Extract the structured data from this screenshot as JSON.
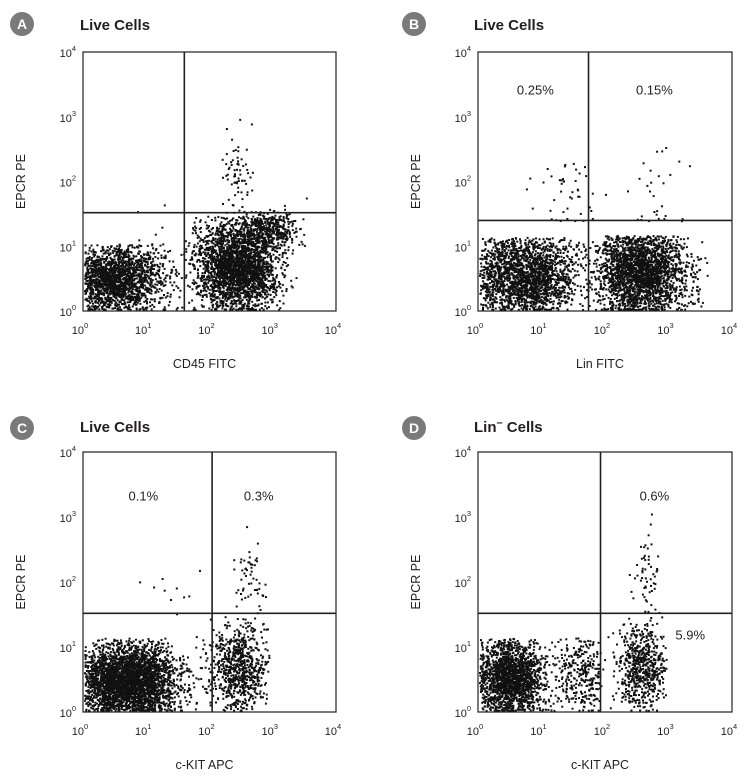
{
  "chart_data": [
    {
      "type": "scatter",
      "panel": "A",
      "title": "Live Cells",
      "title_sup": "",
      "xlabel": "CD45 FITC",
      "ylabel": "EPCR PE",
      "xscale": "log",
      "yscale": "log",
      "xlim": [
        1,
        10000
      ],
      "ylim": [
        1,
        10000
      ],
      "xticks": [
        "10",
        "10",
        "10",
        "10",
        "10"
      ],
      "xtick_exponents": [
        "0",
        "1",
        "2",
        "3",
        "4"
      ],
      "yticks": [
        "10",
        "10",
        "10",
        "10",
        "10"
      ],
      "ytick_exponents": [
        "0",
        "1",
        "2",
        "3",
        "4"
      ],
      "gate": {
        "x": 40,
        "y": 33
      },
      "quadrant_labels": [],
      "populations": [
        {
          "cx": 3,
          "cy": 3.2,
          "sx": 0.38,
          "sy": 0.28,
          "n": 1700,
          "xmin": 1,
          "xmax": 40,
          "ymax": 11
        },
        {
          "cx": 260,
          "cy": 5,
          "sx": 0.32,
          "sy": 0.38,
          "n": 2600,
          "xmin": 40,
          "xmax": 2500,
          "ymax": 30
        },
        {
          "cx": 900,
          "cy": 18,
          "sx": 0.22,
          "sy": 0.15,
          "n": 380,
          "xmin": 300,
          "xmax": 3500
        },
        {
          "cx": 270,
          "cy": 140,
          "sx": 0.12,
          "sy": 0.35,
          "n": 70,
          "xmin": 100,
          "xmax": 800,
          "ymin": 33
        },
        {
          "cx": 15,
          "cy": 4,
          "sx": 0.3,
          "sy": 0.4,
          "n": 60,
          "xmin": 5,
          "xmax": 40
        }
      ]
    },
    {
      "type": "scatter",
      "panel": "B",
      "title": "Live Cells",
      "title_sup": "",
      "xlabel": "Lin FITC",
      "ylabel": "EPCR PE",
      "xscale": "log",
      "yscale": "log",
      "xlim": [
        1,
        10000
      ],
      "ylim": [
        1,
        10000
      ],
      "xticks": [
        "10",
        "10",
        "10",
        "10",
        "10"
      ],
      "xtick_exponents": [
        "0",
        "1",
        "2",
        "3",
        "4"
      ],
      "yticks": [
        "10",
        "10",
        "10",
        "10",
        "10"
      ],
      "ytick_exponents": [
        "0",
        "1",
        "2",
        "3",
        "4"
      ],
      "gate": {
        "x": 55,
        "y": 25
      },
      "quadrant_labels": [
        {
          "text": "0.25%",
          "x": 8,
          "y": 2200
        },
        {
          "text": "0.15%",
          "x": 600,
          "y": 2200
        }
      ],
      "populations": [
        {
          "cx": 5,
          "cy": 3.5,
          "sx": 0.45,
          "sy": 0.35,
          "n": 2000,
          "xmin": 1,
          "xmax": 55,
          "ymax": 14
        },
        {
          "cx": 350,
          "cy": 4,
          "sx": 0.35,
          "sy": 0.38,
          "n": 2200,
          "xmin": 55,
          "xmax": 2000,
          "ymax": 15
        },
        {
          "cx": 25,
          "cy": 70,
          "sx": 0.22,
          "sy": 0.32,
          "n": 45,
          "xmin": 3,
          "xmax": 80,
          "ymin": 25
        },
        {
          "cx": 800,
          "cy": 70,
          "sx": 0.3,
          "sy": 0.35,
          "n": 30,
          "xmin": 55,
          "xmax": 3000,
          "ymin": 25
        },
        {
          "cx": 2500,
          "cy": 3,
          "sx": 0.08,
          "sy": 0.3,
          "n": 60,
          "xmin": 1800,
          "xmax": 4000,
          "ymax": 12
        }
      ]
    },
    {
      "type": "scatter",
      "panel": "C",
      "title": "Live Cells",
      "title_sup": "",
      "xlabel": "c-KIT APC",
      "ylabel": "EPCR PE",
      "xscale": "log",
      "yscale": "log",
      "xlim": [
        1,
        10000
      ],
      "ylim": [
        1,
        10000
      ],
      "xticks": [
        "10",
        "10",
        "10",
        "10",
        "10"
      ],
      "xtick_exponents": [
        "0",
        "1",
        "2",
        "3",
        "4"
      ],
      "yticks": [
        "10",
        "10",
        "10",
        "10",
        "10"
      ],
      "ytick_exponents": [
        "0",
        "1",
        "2",
        "3",
        "4"
      ],
      "gate": {
        "x": 110,
        "y": 33
      },
      "quadrant_labels": [
        {
          "text": "0.1%",
          "x": 9,
          "y": 1800
        },
        {
          "text": "0.3%",
          "x": 600,
          "y": 1800
        }
      ],
      "populations": [
        {
          "cx": 5,
          "cy": 3,
          "sx": 0.4,
          "sy": 0.3,
          "n": 3200,
          "xmin": 1,
          "xmax": 110,
          "ymax": 14
        },
        {
          "cx": 280,
          "cy": 5,
          "sx": 0.25,
          "sy": 0.35,
          "n": 750,
          "xmin": 60,
          "xmax": 900,
          "ymax": 30
        },
        {
          "cx": 420,
          "cy": 120,
          "sx": 0.12,
          "sy": 0.35,
          "n": 55,
          "xmin": 150,
          "xmax": 900,
          "ymin": 33
        },
        {
          "cx": 30,
          "cy": 70,
          "sx": 0.35,
          "sy": 0.2,
          "n": 10,
          "xmin": 3,
          "xmax": 110,
          "ymin": 33
        }
      ]
    },
    {
      "type": "scatter",
      "panel": "D",
      "title": "Lin",
      "title_sup": "–",
      "title_rest": " Cells",
      "xlabel": "c-KIT APC",
      "ylabel": "EPCR PE",
      "xscale": "log",
      "yscale": "log",
      "xlim": [
        1,
        10000
      ],
      "ylim": [
        1,
        10000
      ],
      "xticks": [
        "10",
        "10",
        "10",
        "10",
        "10"
      ],
      "xtick_exponents": [
        "0",
        "1",
        "2",
        "3",
        "4"
      ],
      "yticks": [
        "10",
        "10",
        "10",
        "10",
        "10"
      ],
      "ytick_exponents": [
        "0",
        "1",
        "2",
        "3",
        "4"
      ],
      "gate": {
        "x": 85,
        "y": 33
      },
      "quadrant_labels": [
        {
          "text": "0.6%",
          "x": 600,
          "y": 1800
        },
        {
          "text": "5.9%",
          "x": 2200,
          "y": 13
        }
      ],
      "populations": [
        {
          "cx": 3.2,
          "cy": 3.5,
          "sx": 0.28,
          "sy": 0.3,
          "n": 1700,
          "xmin": 1,
          "xmax": 12,
          "ymax": 14
        },
        {
          "cx": 45,
          "cy": 4,
          "sx": 0.3,
          "sy": 0.35,
          "n": 320,
          "xmin": 10,
          "xmax": 85,
          "ymax": 14
        },
        {
          "cx": 380,
          "cy": 5,
          "sx": 0.2,
          "sy": 0.35,
          "n": 600,
          "xmin": 90,
          "xmax": 900,
          "ymax": 30
        },
        {
          "cx": 420,
          "cy": 130,
          "sx": 0.1,
          "sy": 0.32,
          "n": 55,
          "xmin": 200,
          "xmax": 800,
          "ymin": 33
        }
      ]
    }
  ]
}
